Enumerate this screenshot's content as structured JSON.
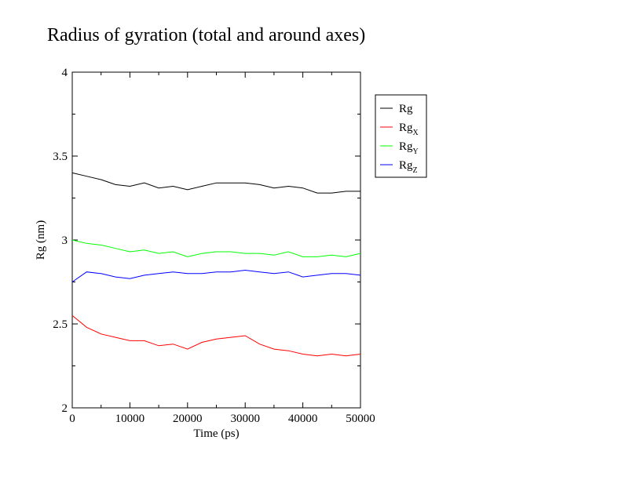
{
  "chart_data": {
    "type": "line",
    "title": "Radius of gyration (total and around axes)",
    "xlabel": "Time (ps)",
    "ylabel": "Rg (nm)",
    "xlim": [
      0,
      50000
    ],
    "ylim": [
      2,
      4
    ],
    "x_ticks": [
      0,
      10000,
      20000,
      30000,
      40000,
      50000
    ],
    "x_tick_labels": [
      "0",
      "10000",
      "20000",
      "30000",
      "40000",
      "50000"
    ],
    "y_ticks": [
      2,
      2.5,
      3,
      3.5,
      4
    ],
    "y_tick_labels": [
      "2",
      "2.5",
      "3",
      "3.5",
      "4"
    ],
    "grid": false,
    "legend_position": "outside-right-top",
    "x": [
      0,
      2500,
      5000,
      7500,
      10000,
      12500,
      15000,
      17500,
      20000,
      22500,
      25000,
      27500,
      30000,
      32500,
      35000,
      37500,
      40000,
      42500,
      45000,
      47500,
      50000
    ],
    "series": [
      {
        "name": "Rg",
        "base": "Rg",
        "sub": "",
        "color": "#000000",
        "values": [
          3.4,
          3.38,
          3.36,
          3.33,
          3.32,
          3.34,
          3.31,
          3.32,
          3.3,
          3.32,
          3.34,
          3.34,
          3.34,
          3.33,
          3.31,
          3.32,
          3.31,
          3.28,
          3.28,
          3.29,
          3.29
        ]
      },
      {
        "name": "RgX",
        "base": "Rg",
        "sub": "X",
        "color": "#ff0000",
        "values": [
          2.55,
          2.48,
          2.44,
          2.42,
          2.4,
          2.4,
          2.37,
          2.38,
          2.35,
          2.39,
          2.41,
          2.42,
          2.43,
          2.38,
          2.35,
          2.34,
          2.32,
          2.31,
          2.32,
          2.31,
          2.32
        ]
      },
      {
        "name": "RgY",
        "base": "Rg",
        "sub": "Y",
        "color": "#00ff00",
        "values": [
          3.0,
          2.98,
          2.97,
          2.95,
          2.93,
          2.94,
          2.92,
          2.93,
          2.9,
          2.92,
          2.93,
          2.93,
          2.92,
          2.92,
          2.91,
          2.93,
          2.9,
          2.9,
          2.91,
          2.9,
          2.92
        ]
      },
      {
        "name": "RgZ",
        "base": "Rg",
        "sub": "Z",
        "color": "#0000ff",
        "values": [
          2.75,
          2.81,
          2.8,
          2.78,
          2.77,
          2.79,
          2.8,
          2.81,
          2.8,
          2.8,
          2.81,
          2.81,
          2.82,
          2.81,
          2.8,
          2.81,
          2.78,
          2.79,
          2.8,
          2.8,
          2.79
        ]
      }
    ]
  }
}
